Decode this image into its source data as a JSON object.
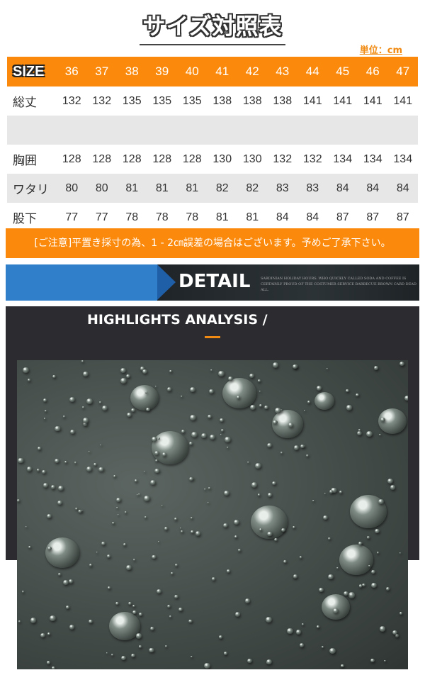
{
  "title": "サイズ対照表",
  "unit": "単位：cm",
  "table": {
    "header": {
      "label": "SIZE",
      "values": [
        "36",
        "37",
        "38",
        "39",
        "40",
        "41",
        "42",
        "43",
        "44",
        "45",
        "46",
        "47"
      ]
    },
    "rows": [
      {
        "label": "総丈",
        "values": [
          "132",
          "132",
          "135",
          "135",
          "135",
          "138",
          "138",
          "138",
          "141",
          "141",
          "141",
          "141"
        ]
      },
      {
        "label": "",
        "values": [
          "",
          "",
          "",
          "",
          "",
          "",
          "",
          "",
          "",
          "",
          "",
          ""
        ]
      },
      {
        "label": "胸囲",
        "values": [
          "128",
          "128",
          "128",
          "128",
          "128",
          "130",
          "130",
          "132",
          "132",
          "134",
          "134",
          "134"
        ]
      },
      {
        "label": "ワタリ",
        "values": [
          "80",
          "80",
          "81",
          "81",
          "81",
          "82",
          "82",
          "83",
          "83",
          "84",
          "84",
          "84"
        ]
      },
      {
        "label": "股下",
        "values": [
          "77",
          "77",
          "78",
          "78",
          "78",
          "81",
          "81",
          "84",
          "84",
          "87",
          "87",
          "87"
        ]
      }
    ]
  },
  "notice": "[ご注意]平置き採寸の為、1 - 2㎝誤差の場合はございます。予めご了承下さい。",
  "detail": {
    "word": "DETAIL",
    "small": "SARDINIAN HOLIDAY HOURS. WHO QUICKLY CALLED SODA AND COFFEE IS CERTAINLY PROUD OF THE COSTUMER SERVICE BARBECUE BROWN CARD DEAD ALL."
  },
  "highlights": {
    "heading": "HIGHLIGHTS ANALYSIS /"
  },
  "colors": {
    "orange": "#fb8a0c",
    "blue": "#2f7fca",
    "dark": "#2b2b30"
  }
}
